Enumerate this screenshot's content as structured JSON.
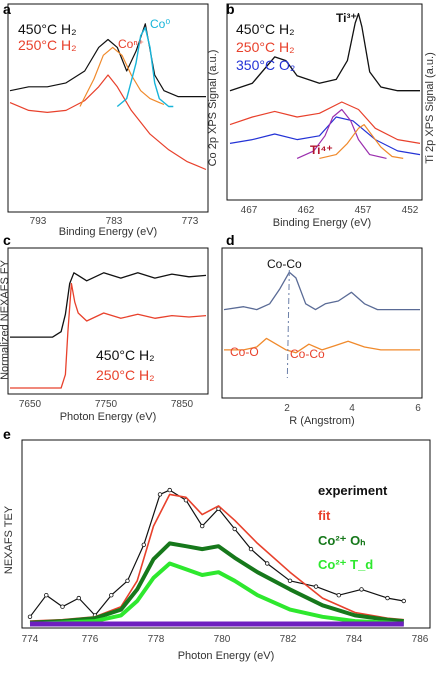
{
  "colors": {
    "black": "#111111",
    "red": "#e8412c",
    "orange": "#f08a2c",
    "cyan": "#17b4d9",
    "blue": "#2433d6",
    "purple": "#9b2fae",
    "darkred": "#b3142d",
    "dark_green": "#16781b",
    "light_green": "#2ee82e",
    "violet": "#6e1fbf",
    "gray_blue": "#5a6b96"
  },
  "chart_data": [
    {
      "panel": "a",
      "type": "line",
      "xlabel": "Binding Energy (eV)",
      "ylabel": "",
      "xlim": [
        794,
        773
      ],
      "x_ticks": [
        793,
        783,
        773
      ],
      "legend": [
        "450°C H₂",
        "250°C H₂"
      ],
      "annotations": [
        "Coⁿ⁺",
        "Co⁰"
      ],
      "series": [
        {
          "name": "450°C H₂",
          "x": [
            794,
            792,
            790,
            788,
            786,
            784.5,
            783.5,
            782.5,
            781.5,
            780.5,
            779.5,
            778.5,
            777.5,
            776,
            774,
            773
          ],
          "y": [
            0.58,
            0.6,
            0.6,
            0.62,
            0.68,
            0.8,
            0.84,
            0.8,
            0.68,
            0.78,
            0.92,
            0.66,
            0.58,
            0.55,
            0.55,
            0.55
          ]
        },
        {
          "name": "250°C H₂",
          "x": [
            794,
            792,
            790,
            788,
            786,
            784.5,
            783.5,
            782.5,
            781,
            779,
            777,
            775,
            774,
            773
          ],
          "y": [
            0.52,
            0.48,
            0.47,
            0.48,
            0.53,
            0.6,
            0.66,
            0.6,
            0.48,
            0.36,
            0.28,
            0.22,
            0.2,
            0.18
          ]
        },
        {
          "name": "Coⁿ⁺",
          "x": [
            786.5,
            785,
            784,
            783,
            782,
            781,
            780,
            779,
            778,
            777.5
          ],
          "y": [
            0.5,
            0.64,
            0.76,
            0.8,
            0.76,
            0.66,
            0.58,
            0.54,
            0.52,
            0.51
          ]
        },
        {
          "name": "Co⁰",
          "x": [
            782.5,
            781.5,
            780.5,
            780,
            779.5,
            779,
            778.5,
            778,
            777,
            776.5
          ],
          "y": [
            0.5,
            0.54,
            0.72,
            0.86,
            0.9,
            0.8,
            0.62,
            0.54,
            0.5,
            0.5
          ]
        }
      ]
    },
    {
      "panel": "b",
      "type": "line",
      "xlabel": "Binding Energy (eV)",
      "ylabel_left": "Co 2p XPS Signal (a.u.)",
      "ylabel_right": "Ti 2p XPS Signal (a.u.)",
      "xlim": [
        469,
        452
      ],
      "x_ticks": [
        467,
        462,
        457,
        452
      ],
      "legend": [
        "450°C H₂",
        "250°C H₂",
        "350°C O₂"
      ],
      "annotations": [
        "Ti³⁺",
        "Ti⁴⁺"
      ],
      "series": [
        {
          "name": "450°C H₂",
          "x": [
            469,
            467,
            465,
            464,
            463,
            461,
            459.5,
            458.5,
            457.8,
            457.5,
            457.2,
            456.5,
            455.5,
            454,
            452
          ],
          "y": [
            0.56,
            0.6,
            0.74,
            0.72,
            0.64,
            0.6,
            0.62,
            0.72,
            0.92,
            0.97,
            0.9,
            0.66,
            0.58,
            0.56,
            0.56
          ]
        },
        {
          "name": "250°C H₂",
          "x": [
            469,
            467,
            465,
            463,
            461,
            459,
            457.5,
            456,
            454,
            452
          ],
          "y": [
            0.38,
            0.42,
            0.45,
            0.42,
            0.44,
            0.5,
            0.46,
            0.36,
            0.3,
            0.28
          ]
        },
        {
          "name": "350°C O₂",
          "x": [
            469,
            467,
            465,
            463,
            461,
            459.5,
            458,
            456,
            454,
            452
          ],
          "y": [
            0.28,
            0.3,
            0.33,
            0.3,
            0.32,
            0.42,
            0.4,
            0.3,
            0.24,
            0.22
          ]
        },
        {
          "name": "Ti⁴⁺",
          "x": [
            463,
            461.5,
            460.5,
            459.8,
            459,
            458.2,
            457.5,
            456.5,
            455
          ],
          "y": [
            0.2,
            0.24,
            0.32,
            0.42,
            0.46,
            0.4,
            0.3,
            0.22,
            0.2
          ]
        },
        {
          "name": "",
          "x": [
            461,
            459.5,
            458.5,
            457.5,
            457,
            456.5,
            455.5,
            454.5,
            453.5
          ],
          "y": [
            0.2,
            0.22,
            0.28,
            0.36,
            0.38,
            0.34,
            0.26,
            0.21,
            0.2
          ]
        }
      ]
    },
    {
      "panel": "c",
      "type": "line",
      "xlabel": "Photon Energy (eV)",
      "ylabel": "Normalized NEXAFS FY",
      "xlim": [
        7650,
        7880
      ],
      "x_ticks": [
        7650,
        7750,
        7850
      ],
      "legend": [
        "450°C H₂",
        "250°C H₂"
      ],
      "series": [
        {
          "name": "450°C H₂",
          "x": [
            7650,
            7700,
            7710,
            7715,
            7720,
            7725,
            7730,
            7740,
            7760,
            7780,
            7800,
            7820,
            7840,
            7860,
            7880
          ],
          "y": [
            0.38,
            0.38,
            0.42,
            0.55,
            0.78,
            0.86,
            0.84,
            0.8,
            0.86,
            0.82,
            0.86,
            0.82,
            0.85,
            0.83,
            0.84
          ]
        },
        {
          "name": "250°C H₂",
          "x": [
            7650,
            7710,
            7715,
            7718,
            7722,
            7726,
            7730,
            7740,
            7760,
            7780,
            7800,
            7820,
            7840,
            7860,
            7880
          ],
          "y": [
            0.0,
            0.0,
            0.1,
            0.42,
            0.78,
            0.64,
            0.56,
            0.5,
            0.56,
            0.52,
            0.55,
            0.52,
            0.54,
            0.53,
            0.54
          ]
        }
      ]
    },
    {
      "panel": "d",
      "type": "line",
      "xlabel": "R (Angstrom)",
      "ylabel": "",
      "xlim": [
        0,
        6
      ],
      "x_ticks": [
        2,
        4,
        6
      ],
      "annotations": [
        "Co-Co",
        "Co-O",
        "Co-Co"
      ],
      "series": [
        {
          "name": "",
          "x": [
            0,
            0.6,
            1.0,
            1.4,
            1.7,
            2.0,
            2.2,
            2.5,
            2.8,
            3.1,
            3.5,
            3.9,
            4.3,
            4.7,
            5.2,
            6.0
          ],
          "y": [
            0.6,
            0.62,
            0.6,
            0.64,
            0.74,
            0.86,
            0.82,
            0.64,
            0.6,
            0.64,
            0.66,
            0.72,
            0.64,
            0.6,
            0.6,
            0.6
          ]
        },
        {
          "name": "",
          "x": [
            0,
            0.6,
            1.0,
            1.3,
            1.6,
            1.9,
            2.2,
            2.6,
            3.0,
            3.4,
            3.8,
            4.3,
            4.8,
            5.4,
            6.0
          ],
          "y": [
            0.32,
            0.32,
            0.34,
            0.4,
            0.36,
            0.32,
            0.3,
            0.36,
            0.32,
            0.35,
            0.38,
            0.34,
            0.32,
            0.32,
            0.32
          ]
        }
      ]
    },
    {
      "panel": "e",
      "type": "line",
      "xlabel": "Photon Energy (eV)",
      "ylabel": "NEXAFS TEY",
      "xlim": [
        774,
        786
      ],
      "x_ticks": [
        774,
        776,
        778,
        780,
        782,
        784,
        786
      ],
      "legend": [
        "experiment",
        "fit",
        "Co²⁺ Oₕ",
        "Co²⁺ T_d"
      ],
      "series": [
        {
          "name": "experiment",
          "x": [
            774,
            774.5,
            775,
            775.5,
            776,
            776.5,
            777,
            777.5,
            778,
            778.3,
            778.8,
            779.3,
            779.8,
            780.3,
            780.8,
            781.3,
            782,
            782.8,
            783.5,
            784.2,
            785,
            785.5
          ],
          "y": [
            0.05,
            0.2,
            0.12,
            0.18,
            0.06,
            0.2,
            0.3,
            0.55,
            0.9,
            0.93,
            0.86,
            0.68,
            0.8,
            0.66,
            0.52,
            0.42,
            0.3,
            0.26,
            0.2,
            0.24,
            0.18,
            0.16
          ]
        },
        {
          "name": "fit",
          "x": [
            774,
            775,
            776,
            776.8,
            777.3,
            777.8,
            778.3,
            778.8,
            779.3,
            779.8,
            780.3,
            781,
            782,
            783,
            784,
            785,
            785.5
          ],
          "y": [
            0.02,
            0.03,
            0.05,
            0.12,
            0.3,
            0.68,
            0.9,
            0.88,
            0.76,
            0.82,
            0.72,
            0.56,
            0.36,
            0.18,
            0.08,
            0.04,
            0.03
          ]
        },
        {
          "name": "Co²⁺ Oₕ",
          "x": [
            774,
            775,
            776,
            776.8,
            777.3,
            777.8,
            778.3,
            778.8,
            779.3,
            779.8,
            780.3,
            781,
            782,
            783,
            784,
            785,
            785.5
          ],
          "y": [
            0.01,
            0.02,
            0.04,
            0.1,
            0.24,
            0.45,
            0.56,
            0.54,
            0.52,
            0.54,
            0.46,
            0.36,
            0.24,
            0.13,
            0.06,
            0.03,
            0.02
          ]
        },
        {
          "name": "Co²⁺ T_d",
          "x": [
            774,
            775,
            776,
            776.8,
            777.3,
            777.8,
            778.3,
            778.8,
            779.3,
            779.8,
            780.3,
            781,
            782,
            783,
            784,
            785,
            785.5
          ],
          "y": [
            0.0,
            0.01,
            0.02,
            0.06,
            0.16,
            0.32,
            0.42,
            0.38,
            0.34,
            0.36,
            0.3,
            0.2,
            0.1,
            0.05,
            0.02,
            0.01,
            0.0
          ]
        },
        {
          "name": "",
          "x": [
            774,
            785.5
          ],
          "y": [
            0.0,
            0.0
          ]
        }
      ]
    }
  ],
  "labels": {
    "a": "a",
    "b": "b",
    "c": "c",
    "d": "d",
    "e": "e",
    "a_leg1": "450°C H₂",
    "a_leg2": "250°C H₂",
    "a_con": "Coⁿ⁺",
    "a_co0": "Co⁰",
    "b_leg1": "450°C H₂",
    "b_leg2": "250°C H₂",
    "b_leg3": "350°C O₂",
    "b_ti3": "Ti³⁺",
    "b_ti4": "Ti⁴⁺",
    "c_leg1": "450°C H₂",
    "c_leg2": "250°C H₂",
    "d_coco": "Co-Co",
    "d_coo": "Co-O",
    "d_coco2": "Co-Co",
    "e_exp": "experiment",
    "e_fit": "fit",
    "e_oh": "Co²⁺ Oₕ",
    "e_td": "Co²⁺ T_d",
    "a_xlabel": "Binding Energy (eV)",
    "b_xlabel": "Binding Energy (eV)",
    "b_ylabel_l": "Co 2p XPS Signal (a.u.)",
    "b_ylabel_r": "Ti 2p XPS Signal (a.u.)",
    "c_xlabel": "Photon Energy (eV)",
    "c_ylabel": "Normalized NEXAFS FY",
    "d_xlabel": "R (Angstrom)",
    "e_xlabel": "Photon Energy (eV)",
    "e_ylabel": "NEXAFS TEY",
    "a_t1": "793",
    "a_t2": "783",
    "a_t3": "773",
    "b_t1": "467",
    "b_t2": "462",
    "b_t3": "457",
    "b_t4": "452",
    "c_t1": "7650",
    "c_t2": "7750",
    "c_t3": "7850",
    "d_t1": "2",
    "d_t2": "4",
    "d_t3": "6",
    "e_t1": "774",
    "e_t2": "776",
    "e_t3": "778",
    "e_t4": "780",
    "e_t5": "782",
    "e_t6": "784",
    "e_t7": "786"
  }
}
